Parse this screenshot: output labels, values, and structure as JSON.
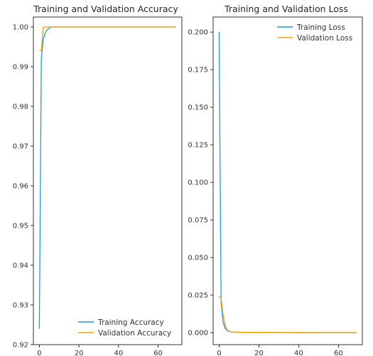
{
  "chart_data": [
    {
      "type": "line",
      "title": "Training and Validation Accuracy",
      "xlabel": "",
      "ylabel": "",
      "xlim": [
        -3,
        72
      ],
      "ylim": [
        0.92,
        1.0025
      ],
      "xticks": [
        0,
        20,
        40,
        60
      ],
      "yticks": [
        0.92,
        0.93,
        0.94,
        0.95,
        0.96,
        0.97,
        0.98,
        0.99,
        1.0
      ],
      "ytick_labels": [
        "0.92",
        "0.93",
        "0.94",
        "0.95",
        "0.96",
        "0.97",
        "0.98",
        "0.99",
        "1.00"
      ],
      "legend_position": "lower-right",
      "grid": false,
      "series": [
        {
          "name": "Training Accuracy",
          "color": "#1f9be0",
          "x": [
            0,
            1,
            2,
            3,
            4,
            5,
            6,
            8,
            10,
            15,
            20,
            30,
            40,
            50,
            60,
            69
          ],
          "values": [
            0.924,
            0.992,
            0.997,
            0.9985,
            0.9993,
            0.9997,
            1.0,
            1.0,
            1.0,
            1.0,
            1.0,
            1.0,
            1.0,
            1.0,
            1.0,
            1.0
          ]
        },
        {
          "name": "Validation Accuracy",
          "color": "#f5a300",
          "x": [
            0,
            1,
            2,
            3,
            5,
            10,
            20,
            30,
            40,
            50,
            60,
            69
          ],
          "values": [
            0.994,
            0.994,
            1.0,
            1.0,
            1.0,
            1.0,
            1.0,
            1.0,
            1.0,
            1.0,
            1.0,
            1.0
          ]
        }
      ]
    },
    {
      "type": "line",
      "title": "Training and Validation Loss",
      "xlabel": "",
      "ylabel": "",
      "xlim": [
        -3,
        72
      ],
      "ylim": [
        -0.008,
        0.21
      ],
      "xticks": [
        0,
        20,
        40,
        60
      ],
      "yticks": [
        0.0,
        0.025,
        0.05,
        0.075,
        0.1,
        0.125,
        0.15,
        0.175,
        0.2
      ],
      "ytick_labels": [
        "0.000",
        "0.025",
        "0.050",
        "0.075",
        "0.100",
        "0.125",
        "0.150",
        "0.175",
        "0.200"
      ],
      "legend_position": "upper-right",
      "grid": false,
      "series": [
        {
          "name": "Training Loss",
          "color": "#1f9be0",
          "x": [
            0,
            1,
            2,
            3,
            4,
            5,
            6,
            8,
            10,
            20,
            30,
            40,
            50,
            60,
            69
          ],
          "values": [
            0.2,
            0.02,
            0.007,
            0.003,
            0.0015,
            0.0008,
            0.0005,
            0.0003,
            0.0002,
            0.0001,
            0.0001,
            0.0,
            0.0,
            0.0,
            0.0
          ]
        },
        {
          "name": "Validation Loss",
          "color": "#f5a300",
          "x": [
            0,
            1,
            2,
            3,
            4,
            5,
            6,
            8,
            10,
            20,
            30,
            40,
            50,
            60,
            69
          ],
          "values": [
            0.024,
            0.023,
            0.012,
            0.005,
            0.002,
            0.001,
            0.0006,
            0.0004,
            0.0003,
            0.0002,
            0.0001,
            0.0001,
            0.0,
            0.0,
            0.0
          ]
        }
      ]
    }
  ]
}
